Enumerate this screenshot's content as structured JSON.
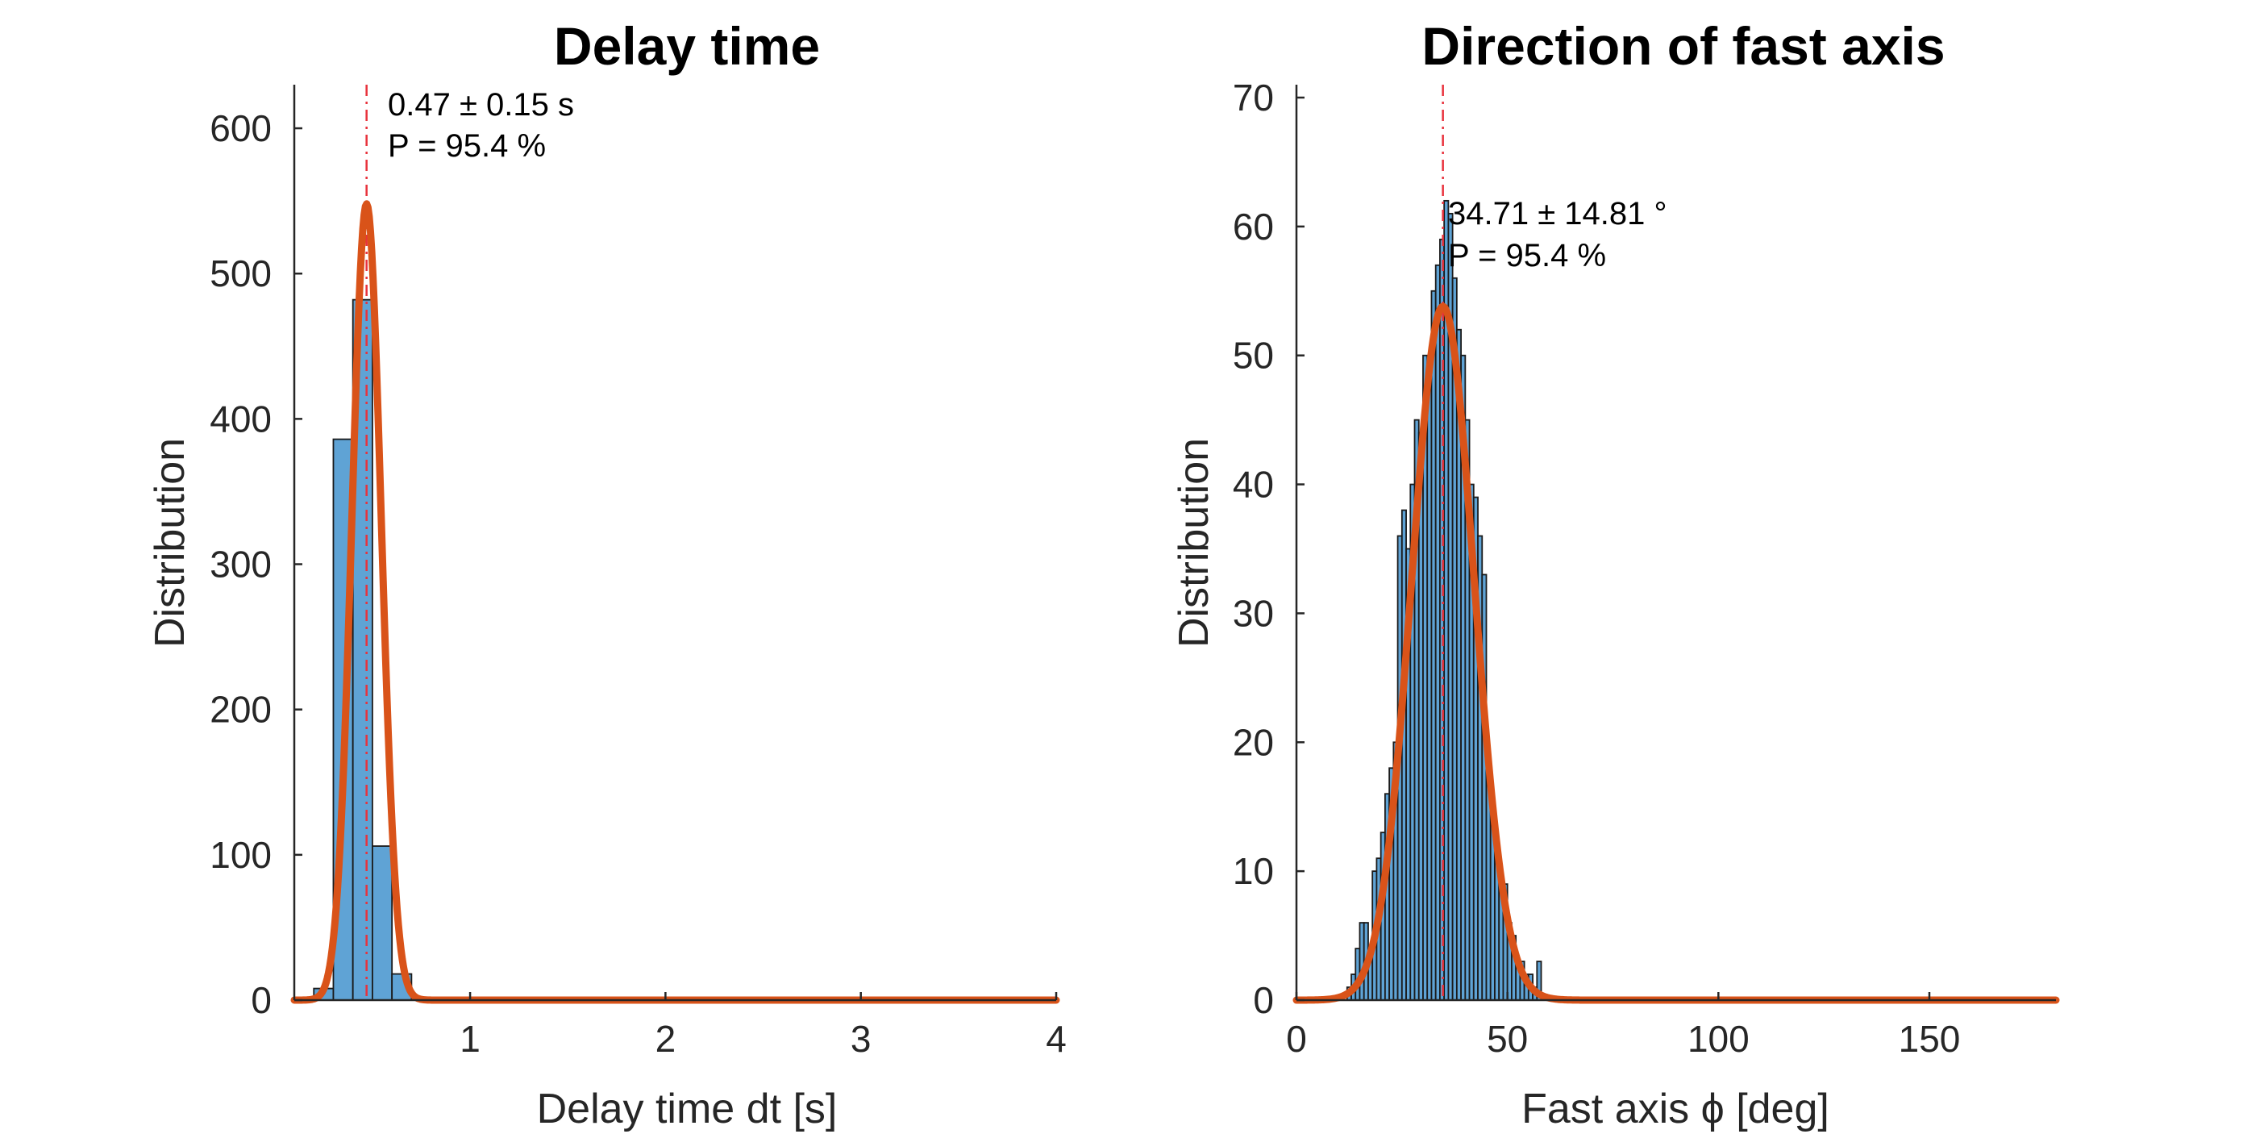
{
  "chart_data": [
    {
      "type": "bar",
      "title": "Delay time",
      "xlabel": "Delay time dt [s]",
      "ylabel": "Distribution",
      "xlim": [
        0.1,
        4
      ],
      "ylim": [
        0,
        630
      ],
      "xticks": [
        1,
        2,
        3,
        4
      ],
      "yticks": [
        0,
        100,
        200,
        300,
        400,
        500,
        600
      ],
      "grid": false,
      "histogram": {
        "bin_edges": [
          0.2,
          0.3,
          0.4,
          0.5,
          0.6,
          0.7
        ],
        "counts": [
          8,
          386,
          482,
          106,
          18
        ]
      },
      "fit_curve": {
        "kind": "gaussian",
        "mean": 0.47,
        "sigma": 0.075,
        "peak": 548
      },
      "mean_line_x": 0.47,
      "annotation": [
        "0.47 ± 0.15 s",
        "P = 95.4 %"
      ],
      "colors": {
        "bars": "#5fa3d5",
        "fit": "#d95319",
        "mean_line": "#e8323c"
      }
    },
    {
      "type": "bar",
      "title": "Direction of fast axis",
      "xlabel": "Fast axis ϕ [deg]",
      "ylabel": "Distribution",
      "xlim": [
        0,
        180
      ],
      "ylim": [
        0,
        71
      ],
      "xticks": [
        0,
        50,
        100,
        150
      ],
      "yticks": [
        0,
        10,
        20,
        30,
        40,
        50,
        60,
        70
      ],
      "grid": false,
      "histogram": {
        "bin_edges": [
          12,
          13,
          14,
          15,
          16,
          17,
          18,
          19,
          20,
          21,
          22,
          23,
          24,
          25,
          26,
          27,
          28,
          29,
          30,
          31,
          32,
          33,
          34,
          35,
          36,
          37,
          38,
          39,
          40,
          41,
          42,
          43,
          44,
          45,
          46,
          47,
          48,
          49,
          50,
          51,
          52,
          53,
          54,
          55,
          56,
          57,
          58
        ],
        "counts": [
          1,
          2,
          4,
          6,
          6,
          4,
          10,
          11,
          13,
          16,
          18,
          20,
          36,
          38,
          35,
          40,
          45,
          44,
          50,
          48,
          55,
          57,
          59,
          62,
          61,
          56,
          52,
          50,
          45,
          40,
          39,
          36,
          33,
          18,
          15,
          12,
          9,
          9,
          6,
          5,
          3,
          3,
          2,
          2,
          1,
          3
        ]
      },
      "fit_curve": {
        "kind": "gaussian",
        "mean": 34.71,
        "sigma": 7.4,
        "peak": 53.8
      },
      "mean_line_x": 34.71,
      "annotation": [
        "34.71 ± 14.81 °",
        "P = 95.4 %"
      ],
      "colors": {
        "bars": "#5fa3d5",
        "fit": "#d95319",
        "mean_line": "#e8323c"
      }
    }
  ]
}
